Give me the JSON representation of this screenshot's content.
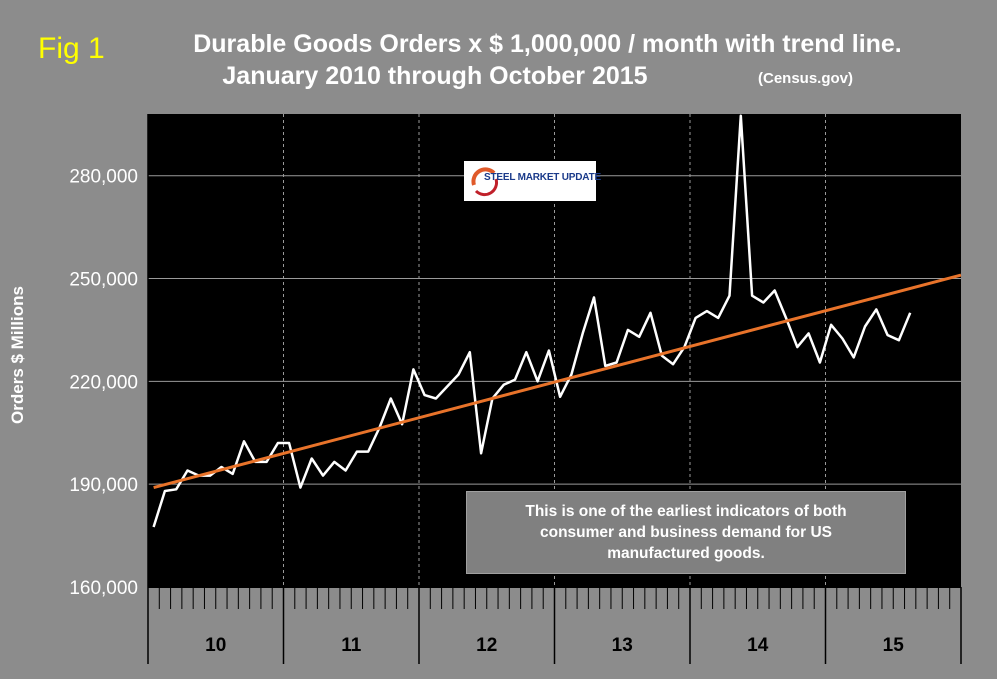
{
  "figure": {
    "label": "Fig 1",
    "title_line1": "Durable Goods Orders x $ 1,000,000 / month with trend line.",
    "title_line2": "January 2010 through October 2015",
    "source": "(Census.gov)",
    "ylabel": "Orders $ Millions",
    "note": "This is one of the earliest indicators of both consumer and business demand for US manufactured goods.",
    "logo_text": "STEEL MARKET UPDATE"
  },
  "colors": {
    "background": "#8c8c8c",
    "plot_area": "#000000",
    "series_line": "#ffffff",
    "trend_line": "#e8732a",
    "fig_label": "#ffff00"
  },
  "chart_data": {
    "type": "line",
    "title": "Durable Goods Orders x $ 1,000,000 / month with trend line.",
    "subtitle": "January 2010 through October 2015",
    "ylabel": "Orders $ Millions",
    "xlabel": "",
    "ylim": [
      160000,
      298000
    ],
    "yticks": [
      160000,
      190000,
      220000,
      250000,
      280000
    ],
    "ytick_labels": [
      "160,000",
      "190,000",
      "220,000",
      "250,000",
      "280,000"
    ],
    "year_labels": [
      "10",
      "11",
      "12",
      "13",
      "14",
      "15"
    ],
    "months_per_year": 12,
    "total_month_slots": 72,
    "grid": "horizontal gridlines + dashed vertical year separators",
    "series": [
      {
        "values": [
          177500,
          188000,
          188500,
          194000,
          192500,
          192500,
          195000,
          193000,
          202500,
          196500,
          196500,
          202000,
          202000,
          189000,
          197500,
          192500,
          196500,
          194000,
          199500,
          199500,
          206500,
          215000,
          207500,
          223500,
          216000,
          215000,
          218500,
          222000,
          228500,
          199000,
          215000,
          219000,
          220500,
          228500,
          220000,
          229000,
          215500,
          222000,
          234000,
          244500,
          224500,
          225500,
          235000,
          233000,
          240000,
          227500,
          225000,
          230000,
          238500,
          240500,
          238500,
          245000,
          297500,
          245000,
          243000,
          246500,
          238500,
          230000,
          234000,
          225500,
          236500,
          232500,
          227000,
          236000,
          241000,
          233500,
          232000,
          240000
        ]
      },
      {
        "name": "trend",
        "x": [
          0,
          71.5
        ],
        "values": [
          189000,
          251000
        ]
      }
    ]
  }
}
